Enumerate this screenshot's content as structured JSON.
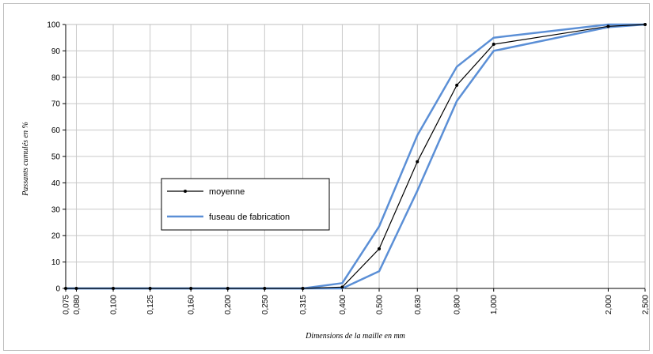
{
  "chart_data": {
    "type": "line",
    "title": "",
    "xlabel": "Dimensions de la maille en mm",
    "ylabel": "Passants cumulés en %",
    "x_scale": "log",
    "xlim": [
      0.075,
      2.5
    ],
    "ylim": [
      0,
      100
    ],
    "grid": true,
    "legend_position": "center-left",
    "x_ticks": [
      {
        "value": 0.075,
        "label": "0,075"
      },
      {
        "value": 0.08,
        "label": "0,080"
      },
      {
        "value": 0.1,
        "label": "0,100"
      },
      {
        "value": 0.125,
        "label": "0,125"
      },
      {
        "value": 0.16,
        "label": "0,160"
      },
      {
        "value": 0.2,
        "label": "0,200"
      },
      {
        "value": 0.25,
        "label": "0,250"
      },
      {
        "value": 0.315,
        "label": "0,315"
      },
      {
        "value": 0.4,
        "label": "0,400"
      },
      {
        "value": 0.5,
        "label": "0,500"
      },
      {
        "value": 0.63,
        "label": "0,630"
      },
      {
        "value": 0.8,
        "label": "0,800"
      },
      {
        "value": 1.0,
        "label": "1,000"
      },
      {
        "value": 2.0,
        "label": "2,000"
      },
      {
        "value": 2.5,
        "label": "2,500"
      }
    ],
    "y_ticks": [
      0,
      10,
      20,
      30,
      40,
      50,
      60,
      70,
      80,
      90,
      100
    ],
    "series": [
      {
        "name": "moyenne",
        "color": "#000000",
        "markers": true,
        "points": [
          {
            "x": 0.075,
            "y": 0
          },
          {
            "x": 0.08,
            "y": 0
          },
          {
            "x": 0.1,
            "y": 0
          },
          {
            "x": 0.125,
            "y": 0
          },
          {
            "x": 0.16,
            "y": 0
          },
          {
            "x": 0.2,
            "y": 0
          },
          {
            "x": 0.25,
            "y": 0
          },
          {
            "x": 0.315,
            "y": 0
          },
          {
            "x": 0.4,
            "y": 0.5
          },
          {
            "x": 0.5,
            "y": 15
          },
          {
            "x": 0.63,
            "y": 48
          },
          {
            "x": 0.8,
            "y": 77
          },
          {
            "x": 1.0,
            "y": 92.5
          },
          {
            "x": 2.0,
            "y": 99.3
          },
          {
            "x": 2.5,
            "y": 100
          }
        ]
      },
      {
        "name": "fuseau de fabrication",
        "color": "#5B8FD6",
        "markers": false,
        "lines": [
          [
            {
              "x": 0.075,
              "y": 0
            },
            {
              "x": 0.315,
              "y": 0
            },
            {
              "x": 0.4,
              "y": 2
            },
            {
              "x": 0.5,
              "y": 23.5
            },
            {
              "x": 0.63,
              "y": 58
            },
            {
              "x": 0.8,
              "y": 84
            },
            {
              "x": 1.0,
              "y": 95
            },
            {
              "x": 2.0,
              "y": 100
            },
            {
              "x": 2.5,
              "y": 100
            }
          ],
          [
            {
              "x": 0.075,
              "y": 0
            },
            {
              "x": 0.4,
              "y": 0
            },
            {
              "x": 0.5,
              "y": 6.5
            },
            {
              "x": 0.63,
              "y": 37
            },
            {
              "x": 0.8,
              "y": 71
            },
            {
              "x": 1.0,
              "y": 90
            },
            {
              "x": 2.0,
              "y": 99
            },
            {
              "x": 2.5,
              "y": 100
            }
          ]
        ]
      }
    ]
  }
}
